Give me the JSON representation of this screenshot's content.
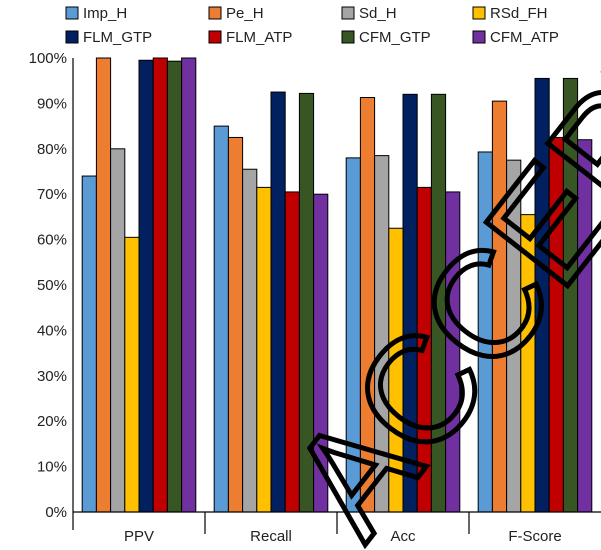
{
  "chart_data": {
    "type": "bar",
    "categories": [
      "PPV",
      "Recall",
      "Acc",
      "F-Score"
    ],
    "series": [
      {
        "name": "Imp_H",
        "color": "#5b9bd5",
        "values": [
          74.0,
          85.0,
          78.0,
          79.3
        ]
      },
      {
        "name": "Pe_H",
        "color": "#ed7d31",
        "values": [
          100.0,
          82.5,
          91.3,
          90.5
        ]
      },
      {
        "name": "Sd_H",
        "color": "#a5a5a5",
        "values": [
          80.0,
          75.5,
          78.5,
          77.5
        ]
      },
      {
        "name": "RSd_FH",
        "color": "#ffc000",
        "values": [
          60.5,
          71.5,
          62.5,
          65.5
        ]
      },
      {
        "name": "FLM_GTP",
        "color": "#002060",
        "values": [
          99.5,
          92.5,
          92.0,
          95.5
        ]
      },
      {
        "name": "FLM_ATP",
        "color": "#c00000",
        "values": [
          100.0,
          70.5,
          71.5,
          82.5
        ]
      },
      {
        "name": "CFM_GTP",
        "color": "#375623",
        "values": [
          99.3,
          92.2,
          92.0,
          95.5
        ]
      },
      {
        "name": "CFM_ATP",
        "color": "#7030a0",
        "values": [
          100.0,
          70.0,
          70.5,
          82.0
        ]
      }
    ],
    "y_ticks": [
      "0%",
      "10%",
      "20%",
      "30%",
      "40%",
      "50%",
      "60%",
      "70%",
      "80%",
      "90%",
      "100%"
    ],
    "ylim": [
      0,
      100
    ],
    "grid": false,
    "legend_position": "top",
    "watermark": "ACCEPTED"
  }
}
